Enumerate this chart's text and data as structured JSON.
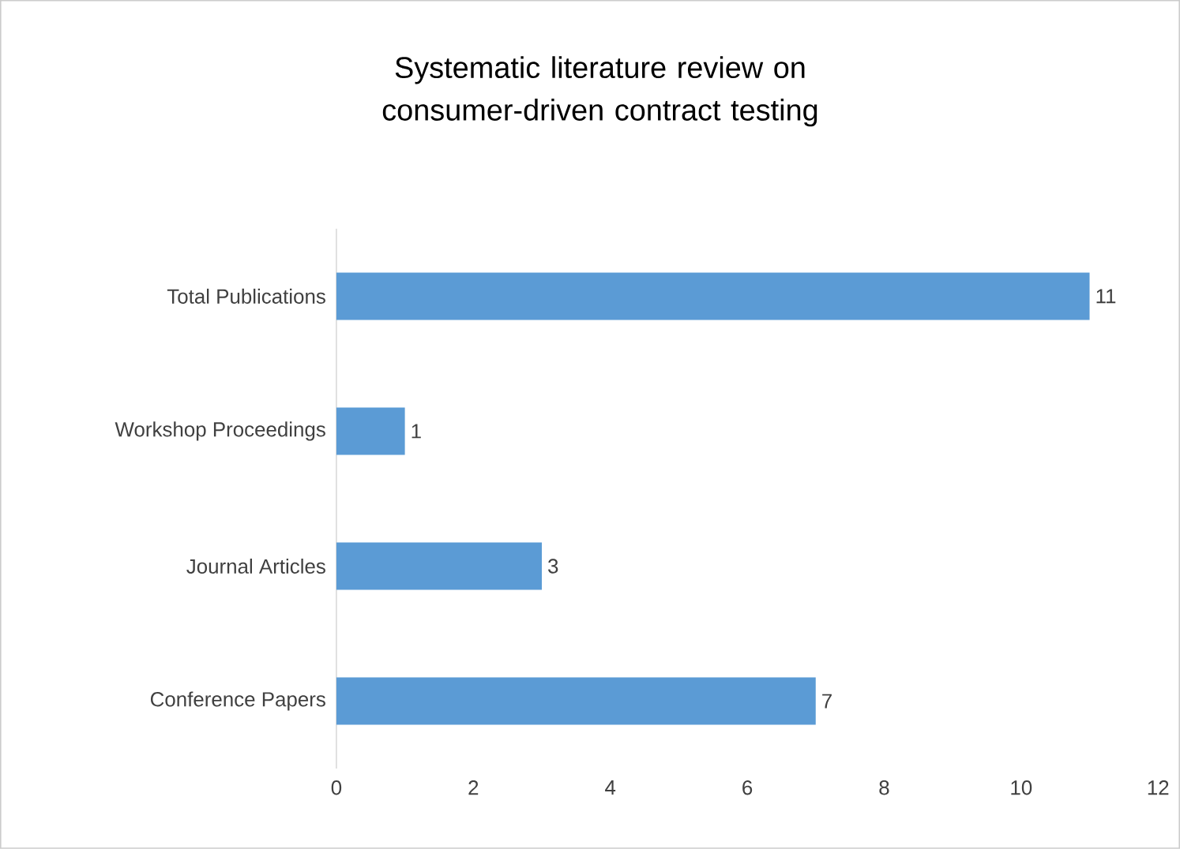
{
  "chart_data": {
    "type": "bar",
    "orientation": "horizontal",
    "title": "Systematic literature review on consumer-driven contract testing",
    "categories": [
      "Total Publications",
      "Workshop Proceedings",
      "Journal Articles",
      "Conference Papers"
    ],
    "values": [
      11,
      1,
      3,
      7
    ],
    "color": "#5b9bd5",
    "xlim": [
      0,
      12
    ],
    "xticks": [
      0,
      2,
      4,
      6,
      8,
      10,
      12
    ],
    "data_labels": true,
    "grid": false
  }
}
